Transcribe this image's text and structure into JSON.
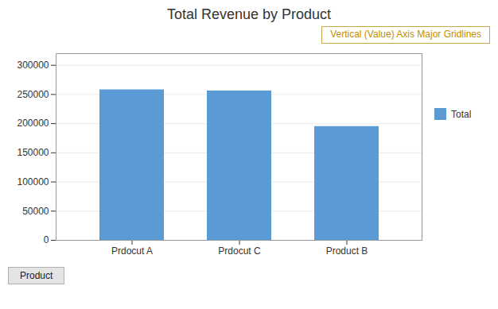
{
  "chart_data": {
    "type": "bar",
    "title": "Total Revenue by Product",
    "categories": [
      "Prdocut A",
      "Prdocut C",
      "Product B"
    ],
    "series": [
      {
        "name": "Total",
        "color": "#5B9BD5",
        "values": [
          258000,
          256000,
          195000
        ]
      }
    ],
    "ylim": [
      0,
      320000
    ],
    "yticks": [
      0,
      50000,
      100000,
      150000,
      200000,
      250000,
      300000
    ],
    "grid": true,
    "legend": "right",
    "annotations": [
      "Vertical (Value) Axis Major Gridlines",
      "Product"
    ]
  }
}
